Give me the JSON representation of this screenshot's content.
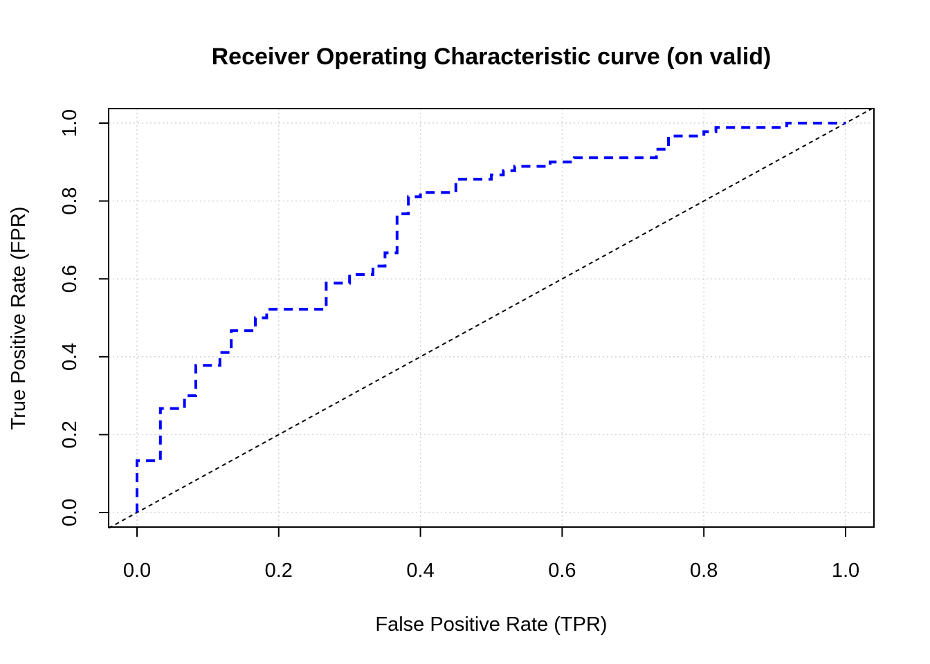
{
  "chart_data": {
    "type": "line",
    "title": "Receiver Operating Characteristic curve (on valid)",
    "xlabel": "False Positive Rate (TPR)",
    "ylabel": "True Positive Rate (FPR)",
    "xlim": [
      0,
      1
    ],
    "ylim": [
      0,
      1
    ],
    "xticks": [
      "0.0",
      "0.2",
      "0.4",
      "0.6",
      "0.8",
      "1.0"
    ],
    "yticks": [
      "0.0",
      "0.2",
      "0.4",
      "0.6",
      "0.8",
      "1.0"
    ],
    "grid": true,
    "legend": "none",
    "series": [
      {
        "color": "#0000ff",
        "line_style": "dashed",
        "x": [
          0,
          0,
          0.033,
          0.033,
          0.067,
          0.067,
          0.083,
          0.083,
          0.117,
          0.117,
          0.133,
          0.133,
          0.167,
          0.167,
          0.183,
          0.183,
          0.267,
          0.267,
          0.3,
          0.3,
          0.333,
          0.333,
          0.35,
          0.35,
          0.367,
          0.367,
          0.383,
          0.383,
          0.4,
          0.4,
          0.45,
          0.45,
          0.5,
          0.5,
          0.517,
          0.517,
          0.533,
          0.533,
          0.583,
          0.583,
          0.617,
          0.617,
          0.733,
          0.733,
          0.75,
          0.75,
          0.8,
          0.8,
          0.817,
          0.817,
          0.917,
          0.917,
          1.0
        ],
        "y": [
          0,
          0.133,
          0.133,
          0.267,
          0.267,
          0.3,
          0.3,
          0.378,
          0.378,
          0.411,
          0.411,
          0.467,
          0.467,
          0.5,
          0.5,
          0.522,
          0.522,
          0.589,
          0.589,
          0.611,
          0.611,
          0.633,
          0.633,
          0.667,
          0.667,
          0.767,
          0.767,
          0.811,
          0.811,
          0.822,
          0.822,
          0.856,
          0.856,
          0.867,
          0.867,
          0.878,
          0.878,
          0.889,
          0.889,
          0.9,
          0.9,
          0.911,
          0.911,
          0.933,
          0.933,
          0.967,
          0.967,
          0.978,
          0.978,
          0.989,
          0.989,
          1.0,
          1.0
        ]
      }
    ],
    "reference_line": {
      "x": [
        0,
        1
      ],
      "y": [
        0,
        1
      ],
      "color": "#000000",
      "line_style": "dashed"
    }
  }
}
